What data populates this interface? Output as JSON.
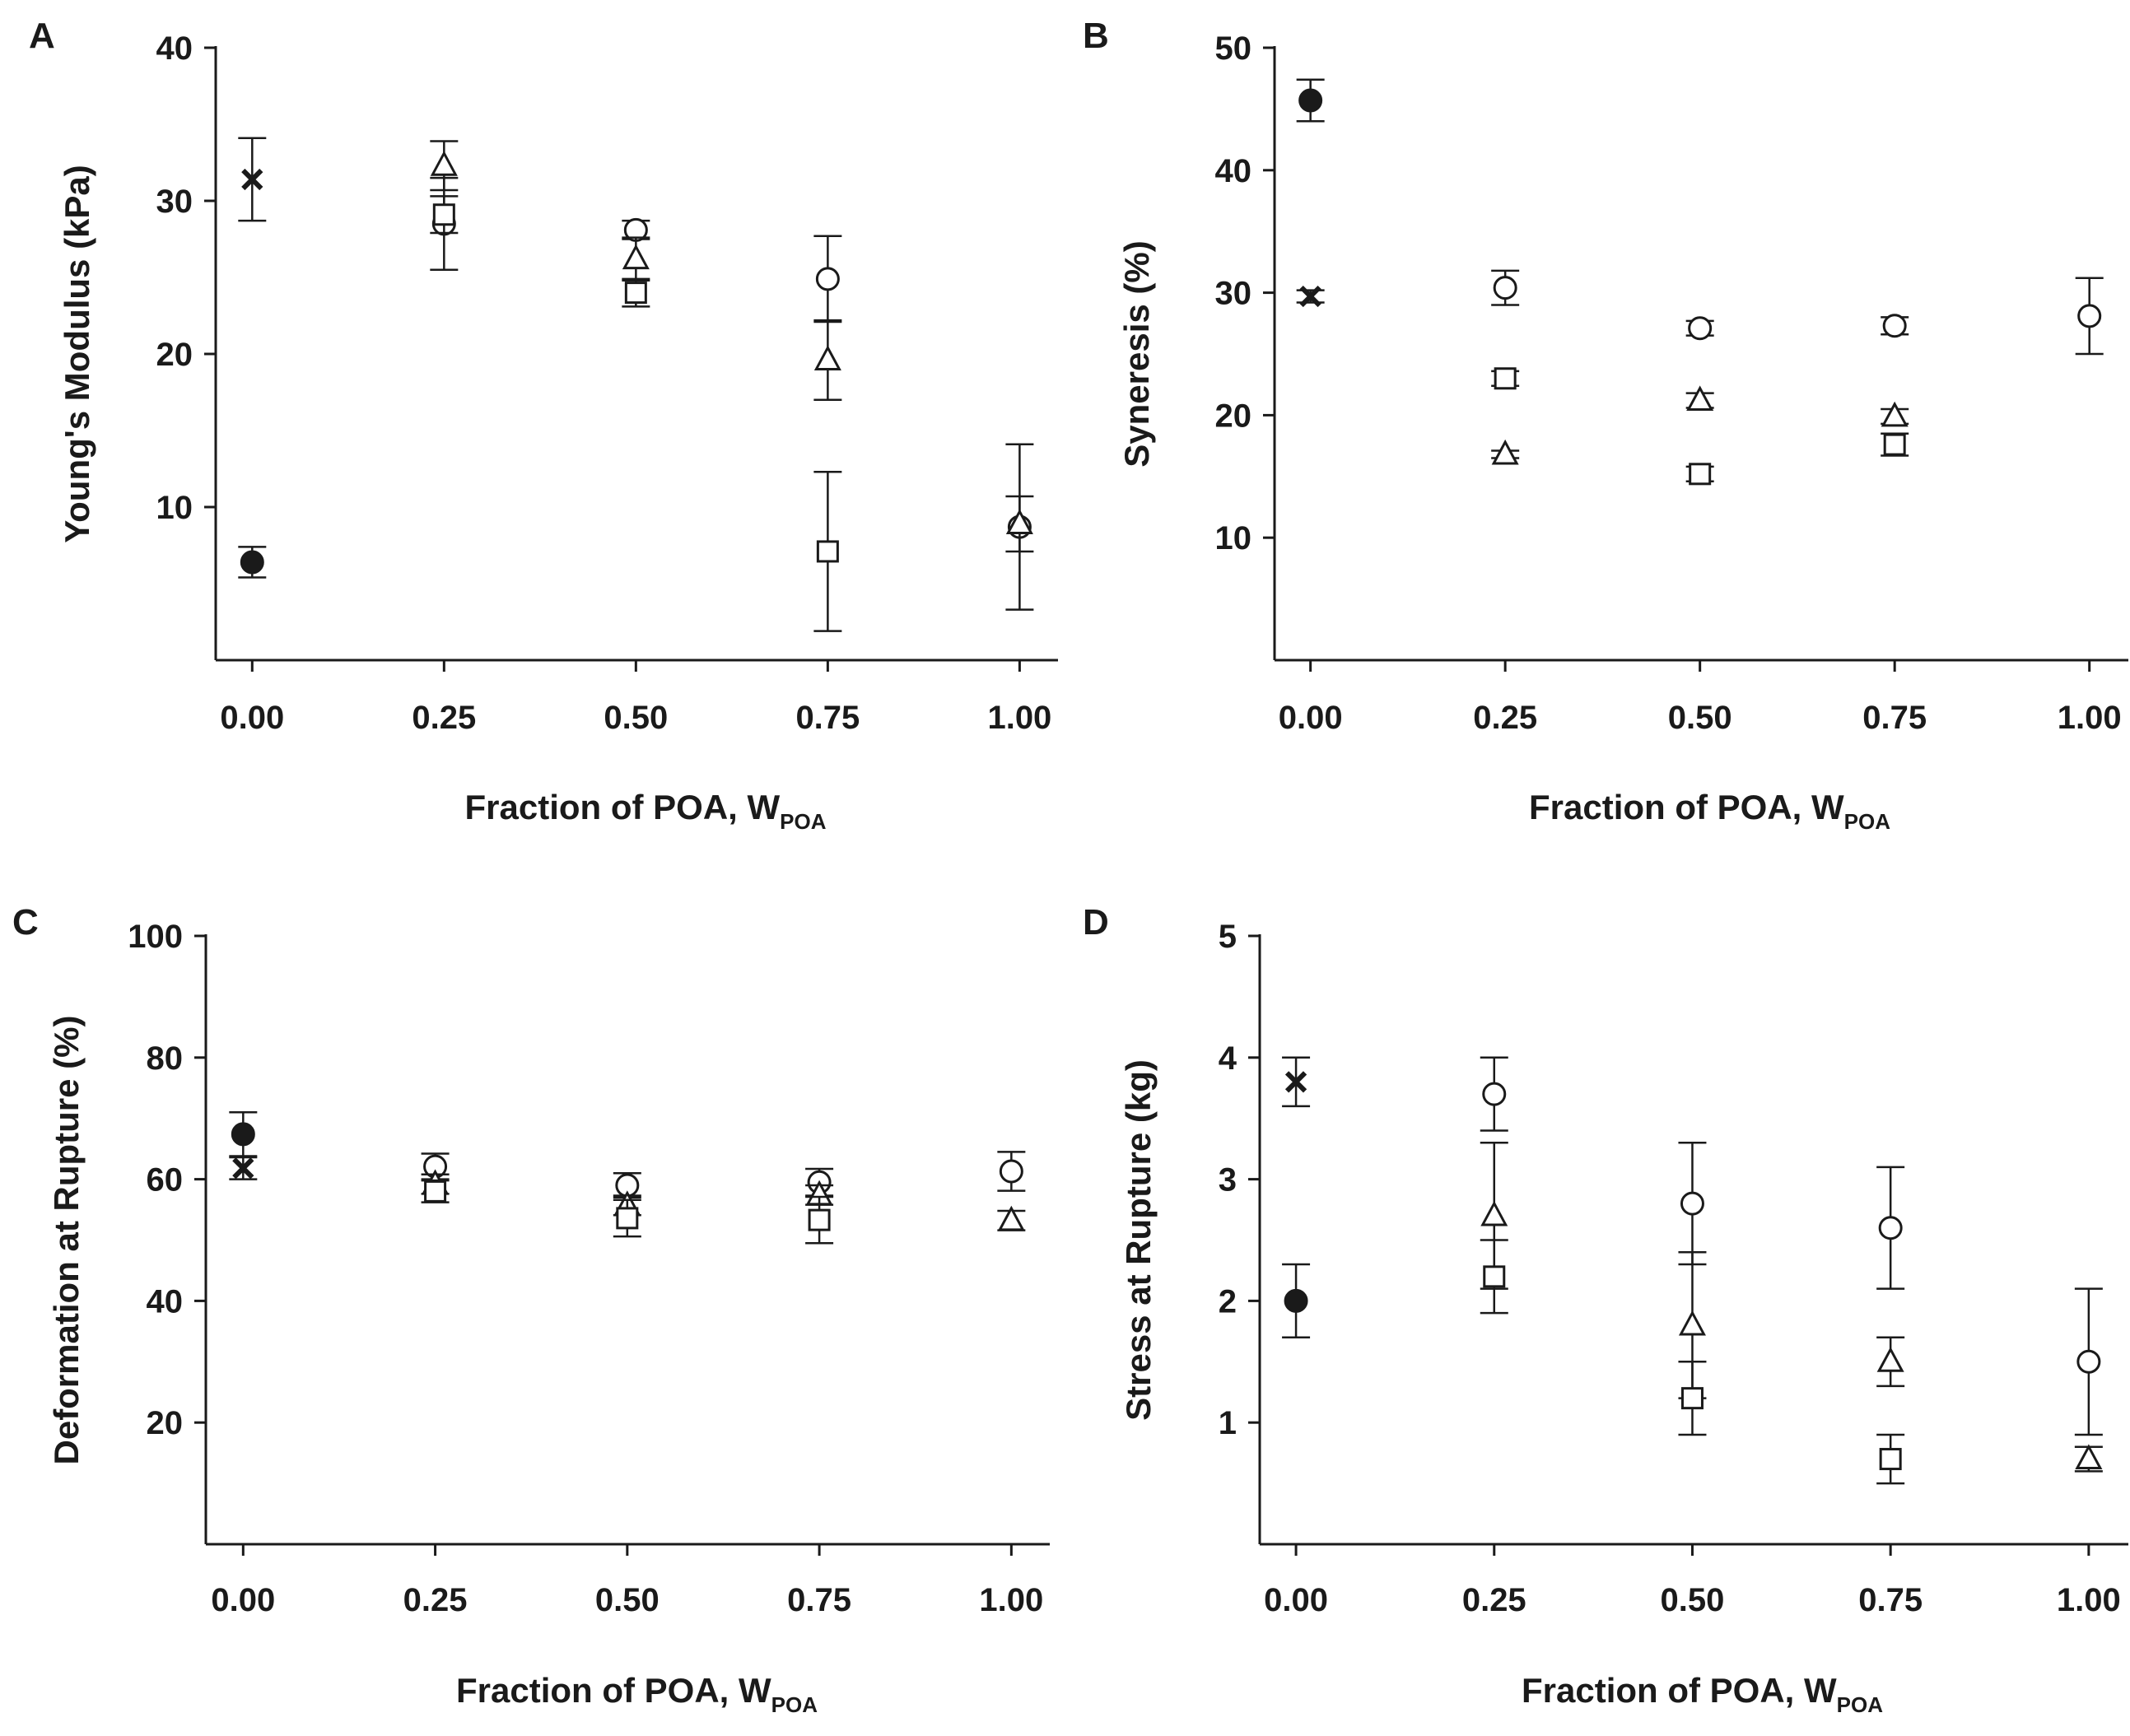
{
  "chart_data": [
    {
      "panel": "A",
      "type": "scatter",
      "xlabel": "Fraction of POA, W",
      "xlabel_sub": "POA",
      "ylabel": "Young's Modulus (kPa)",
      "xticks": [
        "0.00",
        "0.25",
        "0.50",
        "0.75",
        "1.00"
      ],
      "xlim": [
        -0.025,
        1.05
      ],
      "yticks": [
        10,
        20,
        30,
        40
      ],
      "ylim": [
        0,
        40
      ],
      "series": [
        {
          "marker": "filled-circle",
          "points": [
            {
              "x": 0.0,
              "y": 6.4,
              "err": 1.0
            }
          ]
        },
        {
          "marker": "cross",
          "points": [
            {
              "x": 0.0,
              "y": 31.4,
              "err": 2.7
            }
          ]
        },
        {
          "marker": "open-circle",
          "points": [
            {
              "x": 0.25,
              "y": 28.5,
              "err": 3.0
            },
            {
              "x": 0.5,
              "y": 28.1,
              "err": 0.6
            },
            {
              "x": 0.75,
              "y": 24.9,
              "err": 2.8
            },
            {
              "x": 1.0,
              "y": 8.7,
              "err": 5.4
            }
          ]
        },
        {
          "marker": "open-triangle",
          "points": [
            {
              "x": 0.25,
              "y": 32.3,
              "err": 1.6
            },
            {
              "x": 0.5,
              "y": 26.2,
              "err": 1.4
            },
            {
              "x": 0.75,
              "y": 19.6,
              "err": 2.6
            },
            {
              "x": 1.0,
              "y": 8.9,
              "err": 1.8
            }
          ]
        },
        {
          "marker": "open-square",
          "points": [
            {
              "x": 0.25,
              "y": 29.1,
              "err": 1.2
            },
            {
              "x": 0.5,
              "y": 24.0,
              "err": 0.9
            },
            {
              "x": 0.75,
              "y": 7.1,
              "err": 5.2
            }
          ]
        }
      ]
    },
    {
      "panel": "B",
      "type": "scatter",
      "xlabel": "Fraction of POA, W",
      "xlabel_sub": "POA",
      "ylabel": "Syneresis (%)",
      "xticks": [
        "0.00",
        "0.25",
        "0.50",
        "0.75",
        "1.00"
      ],
      "xlim": [
        -0.025,
        1.05
      ],
      "yticks": [
        10,
        20,
        30,
        40,
        50
      ],
      "ylim": [
        0,
        50
      ],
      "series": [
        {
          "marker": "filled-circle",
          "points": [
            {
              "x": 0.0,
              "y": 45.7,
              "err": 1.7
            }
          ]
        },
        {
          "marker": "cross",
          "points": [
            {
              "x": 0.0,
              "y": 29.7,
              "err": 0.5
            }
          ]
        },
        {
          "marker": "open-circle",
          "points": [
            {
              "x": 0.25,
              "y": 30.4,
              "err": 1.4
            },
            {
              "x": 0.5,
              "y": 27.1,
              "err": 0.6
            },
            {
              "x": 0.75,
              "y": 27.3,
              "err": 0.7
            },
            {
              "x": 1.0,
              "y": 28.1,
              "err": 3.1
            }
          ]
        },
        {
          "marker": "open-triangle",
          "points": [
            {
              "x": 0.25,
              "y": 16.8,
              "err": 0.3
            },
            {
              "x": 0.5,
              "y": 21.2,
              "err": 0.6
            },
            {
              "x": 0.75,
              "y": 19.9,
              "err": 0.6
            }
          ]
        },
        {
          "marker": "open-square",
          "points": [
            {
              "x": 0.25,
              "y": 23.0,
              "err": 0.6
            },
            {
              "x": 0.5,
              "y": 15.2,
              "err": 0.6
            },
            {
              "x": 0.75,
              "y": 17.6,
              "err": 0.9
            }
          ]
        }
      ]
    },
    {
      "panel": "C",
      "type": "scatter",
      "xlabel": "Fraction of POA, W",
      "xlabel_sub": "POA",
      "ylabel": "Deformation at Rupture (%)",
      "xticks": [
        "0.00",
        "0.25",
        "0.50",
        "0.75",
        "1.00"
      ],
      "xlim": [
        -0.025,
        1.05
      ],
      "yticks": [
        20,
        40,
        60,
        80,
        100
      ],
      "ylim": [
        0,
        100
      ],
      "series": [
        {
          "marker": "filled-circle",
          "points": [
            {
              "x": 0.0,
              "y": 67.4,
              "err": 3.6
            }
          ]
        },
        {
          "marker": "cross",
          "points": [
            {
              "x": 0.0,
              "y": 61.8,
              "err": 1.8
            }
          ]
        },
        {
          "marker": "open-circle",
          "points": [
            {
              "x": 0.25,
              "y": 62.1,
              "err": 2.1
            },
            {
              "x": 0.5,
              "y": 59.0,
              "err": 2.0
            },
            {
              "x": 0.75,
              "y": 59.5,
              "err": 2.2
            },
            {
              "x": 1.0,
              "y": 61.3,
              "err": 3.2
            }
          ]
        },
        {
          "marker": "open-triangle",
          "points": [
            {
              "x": 0.25,
              "y": 59.2,
              "err": 1.6
            },
            {
              "x": 0.5,
              "y": 55.7,
              "err": 1.6
            },
            {
              "x": 0.75,
              "y": 57.4,
              "err": 1.6
            },
            {
              "x": 1.0,
              "y": 53.2,
              "err": 1.6
            }
          ]
        },
        {
          "marker": "open-square",
          "points": [
            {
              "x": 0.25,
              "y": 58.0,
              "err": 1.8
            },
            {
              "x": 0.5,
              "y": 53.6,
              "err": 3.0
            },
            {
              "x": 0.75,
              "y": 53.3,
              "err": 3.8
            }
          ]
        }
      ]
    },
    {
      "panel": "D",
      "type": "scatter",
      "xlabel": "Fraction of POA, W",
      "xlabel_sub": "POA",
      "ylabel": "Stress at Rupture (kg)",
      "xticks": [
        "0.00",
        "0.25",
        "0.50",
        "0.75",
        "1.00"
      ],
      "xlim": [
        -0.025,
        1.05
      ],
      "yticks": [
        1,
        2,
        3,
        4,
        5
      ],
      "ylim": [
        0,
        5
      ],
      "series": [
        {
          "marker": "filled-circle",
          "points": [
            {
              "x": 0.0,
              "y": 2.0,
              "err": 0.3
            }
          ]
        },
        {
          "marker": "cross",
          "points": [
            {
              "x": 0.0,
              "y": 3.8,
              "err": 0.2
            }
          ]
        },
        {
          "marker": "open-circle",
          "points": [
            {
              "x": 0.25,
              "y": 3.7,
              "err": 0.3
            },
            {
              "x": 0.5,
              "y": 2.8,
              "err": 0.5
            },
            {
              "x": 0.75,
              "y": 2.6,
              "err": 0.5
            },
            {
              "x": 1.0,
              "y": 1.5,
              "err": 0.6
            }
          ]
        },
        {
          "marker": "open-triangle",
          "points": [
            {
              "x": 0.25,
              "y": 2.7,
              "err": 0.6
            },
            {
              "x": 0.5,
              "y": 1.8,
              "err": 0.6
            },
            {
              "x": 0.75,
              "y": 1.5,
              "err": 0.2
            },
            {
              "x": 1.0,
              "y": 0.7,
              "err": 0.1
            }
          ]
        },
        {
          "marker": "open-square",
          "points": [
            {
              "x": 0.25,
              "y": 2.2,
              "err": 0.3
            },
            {
              "x": 0.5,
              "y": 1.2,
              "err": 0.3
            },
            {
              "x": 0.75,
              "y": 0.7,
              "err": 0.2
            }
          ]
        }
      ]
    }
  ]
}
